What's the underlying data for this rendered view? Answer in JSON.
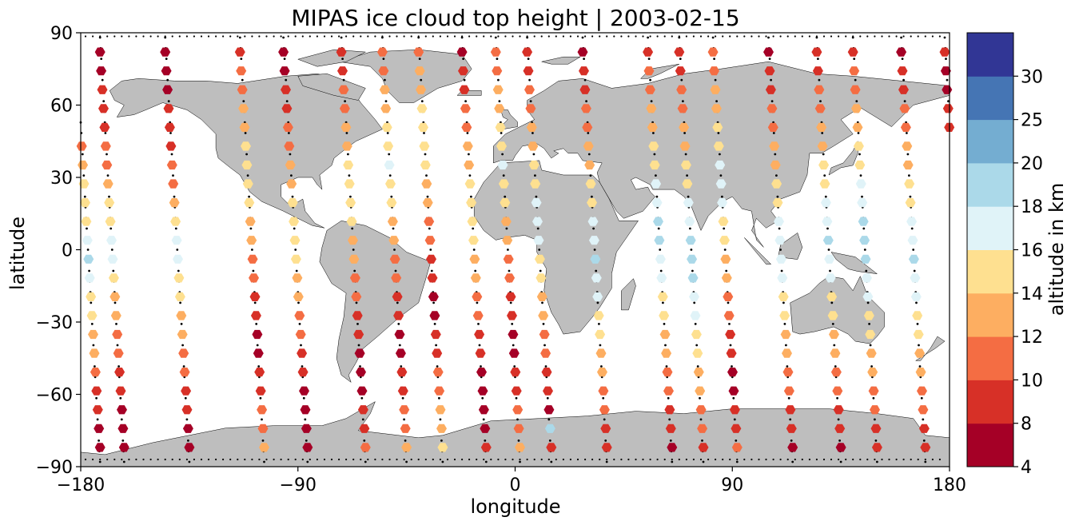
{
  "chart_data": {
    "type": "scatter",
    "title": "MIPAS ice cloud top height | 2003-02-15",
    "xlabel": "longitude",
    "ylabel": "latitude",
    "xlim": [
      -180,
      180
    ],
    "ylim": [
      -90,
      90
    ],
    "xticks": [
      -180,
      -90,
      0,
      90,
      180
    ],
    "xtick_labels": [
      "−180",
      "−90",
      "0",
      "90",
      "180"
    ],
    "yticks": [
      -90,
      -60,
      -30,
      0,
      30,
      60,
      90
    ],
    "ytick_labels": [
      "−90",
      "−60",
      "−30",
      "0",
      "30",
      "60",
      "90"
    ],
    "grid": false,
    "legend": "none",
    "land_color": "#bebebe",
    "colorbar": {
      "label": "altitude in km",
      "bounds": [
        4,
        8,
        10,
        12,
        14,
        16,
        18,
        20,
        25,
        30
      ],
      "tick_labels": [
        "4",
        "8",
        "10",
        "12",
        "14",
        "16",
        "18",
        "20",
        "25",
        "30"
      ],
      "colors": [
        "#a50026",
        "#d73027",
        "#f46d43",
        "#fdae61",
        "#fee090",
        "#e0f3f8",
        "#abd9e9",
        "#74add1",
        "#4575b4",
        "#313695"
      ]
    },
    "orbit_tracks": [
      {
        "lon_start": 178,
        "lon_end": 188,
        "cloud_heights": [
          9,
          7,
          6,
          8,
          9,
          10,
          12,
          14,
          15,
          15,
          16,
          18,
          16,
          15,
          14,
          13,
          12,
          11,
          9,
          8,
          7,
          6
        ]
      },
      {
        "lon_start": -172,
        "lon_end": -162,
        "cloud_heights": [
          7,
          7,
          8,
          9,
          9,
          10,
          11,
          12,
          14,
          15,
          16,
          16,
          15,
          13,
          12,
          11,
          10,
          9,
          8,
          7,
          6,
          5
        ]
      },
      {
        "lon_start": -145,
        "lon_end": -135,
        "cloud_heights": [
          6,
          6,
          7,
          8,
          8,
          9,
          10,
          11,
          13,
          14,
          16,
          16,
          15,
          14,
          13,
          12,
          11,
          10,
          9,
          8,
          7,
          6
        ]
      },
      {
        "lon_start": -114,
        "lon_end": -104,
        "cloud_heights": [
          9,
          10,
          11,
          12,
          13,
          14,
          15,
          15,
          14,
          13,
          12,
          11,
          10,
          9,
          8,
          7,
          7,
          8,
          9,
          10,
          11,
          12
        ]
      },
      {
        "lon_start": -96,
        "lon_end": -86,
        "cloud_heights": [
          6,
          7,
          8,
          9,
          10,
          11,
          12,
          13,
          14,
          15,
          15,
          14,
          13,
          12,
          11,
          10,
          9,
          8,
          7,
          6,
          6,
          7
        ]
      },
      {
        "lon_start": -72,
        "lon_end": -62,
        "cloud_heights": [
          8,
          9,
          10,
          11,
          12,
          13,
          14,
          15,
          15,
          14,
          13,
          12,
          11,
          10,
          9,
          8,
          7,
          6,
          7,
          8,
          9,
          10
        ]
      },
      {
        "lon_start": -55,
        "lon_end": -45,
        "cloud_heights": [
          10,
          11,
          12,
          13,
          14,
          15,
          16,
          15,
          14,
          13,
          12,
          11,
          10,
          9,
          8,
          7,
          7,
          8,
          9,
          10,
          11,
          12
        ]
      },
      {
        "lon_start": -40,
        "lon_end": -30,
        "cloud_heights": [
          11,
          12,
          13,
          14,
          15,
          15,
          14,
          13,
          12,
          11,
          10,
          9,
          8,
          7,
          7,
          8,
          9,
          10,
          11,
          12,
          13,
          14
        ]
      },
      {
        "lon_start": -22,
        "lon_end": -12,
        "cloud_heights": [
          7,
          8,
          9,
          10,
          11,
          12,
          13,
          14,
          15,
          15,
          14,
          13,
          12,
          11,
          10,
          9,
          8,
          7,
          6,
          6,
          7,
          8
        ]
      },
      {
        "lon_start": -8,
        "lon_end": 2,
        "cloud_heights": [
          10,
          11,
          12,
          13,
          14,
          15,
          16,
          15,
          14,
          13,
          12,
          11,
          10,
          9,
          8,
          7,
          7,
          8,
          9,
          10,
          11,
          12
        ]
      },
      {
        "lon_start": 5,
        "lon_end": 15,
        "cloud_heights": [
          8,
          9,
          10,
          11,
          12,
          13,
          14,
          15,
          16,
          17,
          16,
          15,
          14,
          13,
          12,
          11,
          10,
          9,
          8,
          7,
          18,
          8
        ]
      },
      {
        "lon_start": 28,
        "lon_end": 38,
        "cloud_heights": [
          7,
          8,
          9,
          10,
          11,
          12,
          13,
          14,
          15,
          16,
          17,
          18,
          17,
          16,
          15,
          14,
          13,
          12,
          11,
          10,
          9,
          8
        ]
      },
      {
        "lon_start": 55,
        "lon_end": 65,
        "cloud_heights": [
          9,
          10,
          11,
          12,
          13,
          14,
          15,
          16,
          17,
          18,
          18,
          17,
          16,
          15,
          14,
          13,
          12,
          11,
          10,
          9,
          8,
          7
        ]
      },
      {
        "lon_start": 68,
        "lon_end": 78,
        "cloud_heights": [
          8,
          9,
          10,
          11,
          12,
          13,
          14,
          15,
          16,
          17,
          18,
          19,
          18,
          17,
          16,
          15,
          14,
          13,
          12,
          11,
          10,
          9
        ]
      },
      {
        "lon_start": 82,
        "lon_end": 92,
        "cloud_heights": [
          10,
          11,
          12,
          13,
          14,
          15,
          16,
          17,
          16,
          15,
          14,
          13,
          12,
          11,
          10,
          9,
          8,
          7,
          7,
          8,
          9,
          10
        ]
      },
      {
        "lon_start": 105,
        "lon_end": 115,
        "cloud_heights": [
          7,
          8,
          9,
          10,
          11,
          12,
          13,
          14,
          15,
          16,
          17,
          17,
          16,
          15,
          14,
          13,
          12,
          11,
          10,
          9,
          8,
          7
        ]
      },
      {
        "lon_start": 125,
        "lon_end": 135,
        "cloud_heights": [
          8,
          9,
          10,
          11,
          12,
          13,
          14,
          15,
          16,
          17,
          19,
          17,
          16,
          15,
          14,
          13,
          12,
          11,
          10,
          9,
          8,
          7
        ]
      },
      {
        "lon_start": 140,
        "lon_end": 150,
        "cloud_heights": [
          9,
          10,
          11,
          12,
          13,
          14,
          15,
          16,
          17,
          18,
          19,
          18,
          17,
          16,
          15,
          14,
          13,
          12,
          11,
          10,
          9,
          8
        ]
      },
      {
        "lon_start": 160,
        "lon_end": 170,
        "cloud_heights": [
          7,
          8,
          9,
          10,
          11,
          12,
          13,
          14,
          15,
          16,
          17,
          18,
          17,
          16,
          15,
          14,
          13,
          12,
          11,
          10,
          9,
          8
        ]
      }
    ]
  }
}
